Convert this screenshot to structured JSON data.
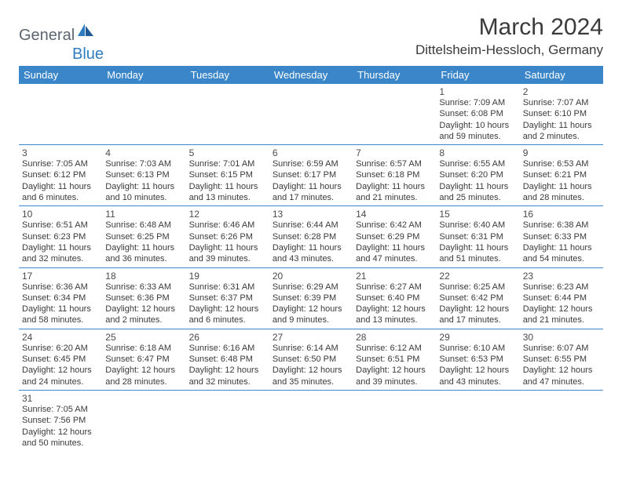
{
  "logo": {
    "part1": "General",
    "part2": "Blue"
  },
  "title": "March 2024",
  "location": "Dittelsheim-Hessloch, Germany",
  "colors": {
    "header_bg": "#3a86c8",
    "header_text": "#ffffff",
    "border": "#3a86c8",
    "logo_gray": "#5a6570",
    "logo_blue": "#2f7cc0"
  },
  "daynames": [
    "Sunday",
    "Monday",
    "Tuesday",
    "Wednesday",
    "Thursday",
    "Friday",
    "Saturday"
  ],
  "weeks": [
    [
      null,
      null,
      null,
      null,
      null,
      {
        "n": "1",
        "sr": "7:09 AM",
        "ss": "6:08 PM",
        "dl": "10 hours and 59 minutes."
      },
      {
        "n": "2",
        "sr": "7:07 AM",
        "ss": "6:10 PM",
        "dl": "11 hours and 2 minutes."
      }
    ],
    [
      {
        "n": "3",
        "sr": "7:05 AM",
        "ss": "6:12 PM",
        "dl": "11 hours and 6 minutes."
      },
      {
        "n": "4",
        "sr": "7:03 AM",
        "ss": "6:13 PM",
        "dl": "11 hours and 10 minutes."
      },
      {
        "n": "5",
        "sr": "7:01 AM",
        "ss": "6:15 PM",
        "dl": "11 hours and 13 minutes."
      },
      {
        "n": "6",
        "sr": "6:59 AM",
        "ss": "6:17 PM",
        "dl": "11 hours and 17 minutes."
      },
      {
        "n": "7",
        "sr": "6:57 AM",
        "ss": "6:18 PM",
        "dl": "11 hours and 21 minutes."
      },
      {
        "n": "8",
        "sr": "6:55 AM",
        "ss": "6:20 PM",
        "dl": "11 hours and 25 minutes."
      },
      {
        "n": "9",
        "sr": "6:53 AM",
        "ss": "6:21 PM",
        "dl": "11 hours and 28 minutes."
      }
    ],
    [
      {
        "n": "10",
        "sr": "6:51 AM",
        "ss": "6:23 PM",
        "dl": "11 hours and 32 minutes."
      },
      {
        "n": "11",
        "sr": "6:48 AM",
        "ss": "6:25 PM",
        "dl": "11 hours and 36 minutes."
      },
      {
        "n": "12",
        "sr": "6:46 AM",
        "ss": "6:26 PM",
        "dl": "11 hours and 39 minutes."
      },
      {
        "n": "13",
        "sr": "6:44 AM",
        "ss": "6:28 PM",
        "dl": "11 hours and 43 minutes."
      },
      {
        "n": "14",
        "sr": "6:42 AM",
        "ss": "6:29 PM",
        "dl": "11 hours and 47 minutes."
      },
      {
        "n": "15",
        "sr": "6:40 AM",
        "ss": "6:31 PM",
        "dl": "11 hours and 51 minutes."
      },
      {
        "n": "16",
        "sr": "6:38 AM",
        "ss": "6:33 PM",
        "dl": "11 hours and 54 minutes."
      }
    ],
    [
      {
        "n": "17",
        "sr": "6:36 AM",
        "ss": "6:34 PM",
        "dl": "11 hours and 58 minutes."
      },
      {
        "n": "18",
        "sr": "6:33 AM",
        "ss": "6:36 PM",
        "dl": "12 hours and 2 minutes."
      },
      {
        "n": "19",
        "sr": "6:31 AM",
        "ss": "6:37 PM",
        "dl": "12 hours and 6 minutes."
      },
      {
        "n": "20",
        "sr": "6:29 AM",
        "ss": "6:39 PM",
        "dl": "12 hours and 9 minutes."
      },
      {
        "n": "21",
        "sr": "6:27 AM",
        "ss": "6:40 PM",
        "dl": "12 hours and 13 minutes."
      },
      {
        "n": "22",
        "sr": "6:25 AM",
        "ss": "6:42 PM",
        "dl": "12 hours and 17 minutes."
      },
      {
        "n": "23",
        "sr": "6:23 AM",
        "ss": "6:44 PM",
        "dl": "12 hours and 21 minutes."
      }
    ],
    [
      {
        "n": "24",
        "sr": "6:20 AM",
        "ss": "6:45 PM",
        "dl": "12 hours and 24 minutes."
      },
      {
        "n": "25",
        "sr": "6:18 AM",
        "ss": "6:47 PM",
        "dl": "12 hours and 28 minutes."
      },
      {
        "n": "26",
        "sr": "6:16 AM",
        "ss": "6:48 PM",
        "dl": "12 hours and 32 minutes."
      },
      {
        "n": "27",
        "sr": "6:14 AM",
        "ss": "6:50 PM",
        "dl": "12 hours and 35 minutes."
      },
      {
        "n": "28",
        "sr": "6:12 AM",
        "ss": "6:51 PM",
        "dl": "12 hours and 39 minutes."
      },
      {
        "n": "29",
        "sr": "6:10 AM",
        "ss": "6:53 PM",
        "dl": "12 hours and 43 minutes."
      },
      {
        "n": "30",
        "sr": "6:07 AM",
        "ss": "6:55 PM",
        "dl": "12 hours and 47 minutes."
      }
    ],
    [
      {
        "n": "31",
        "sr": "7:05 AM",
        "ss": "7:56 PM",
        "dl": "12 hours and 50 minutes."
      },
      null,
      null,
      null,
      null,
      null,
      null
    ]
  ]
}
